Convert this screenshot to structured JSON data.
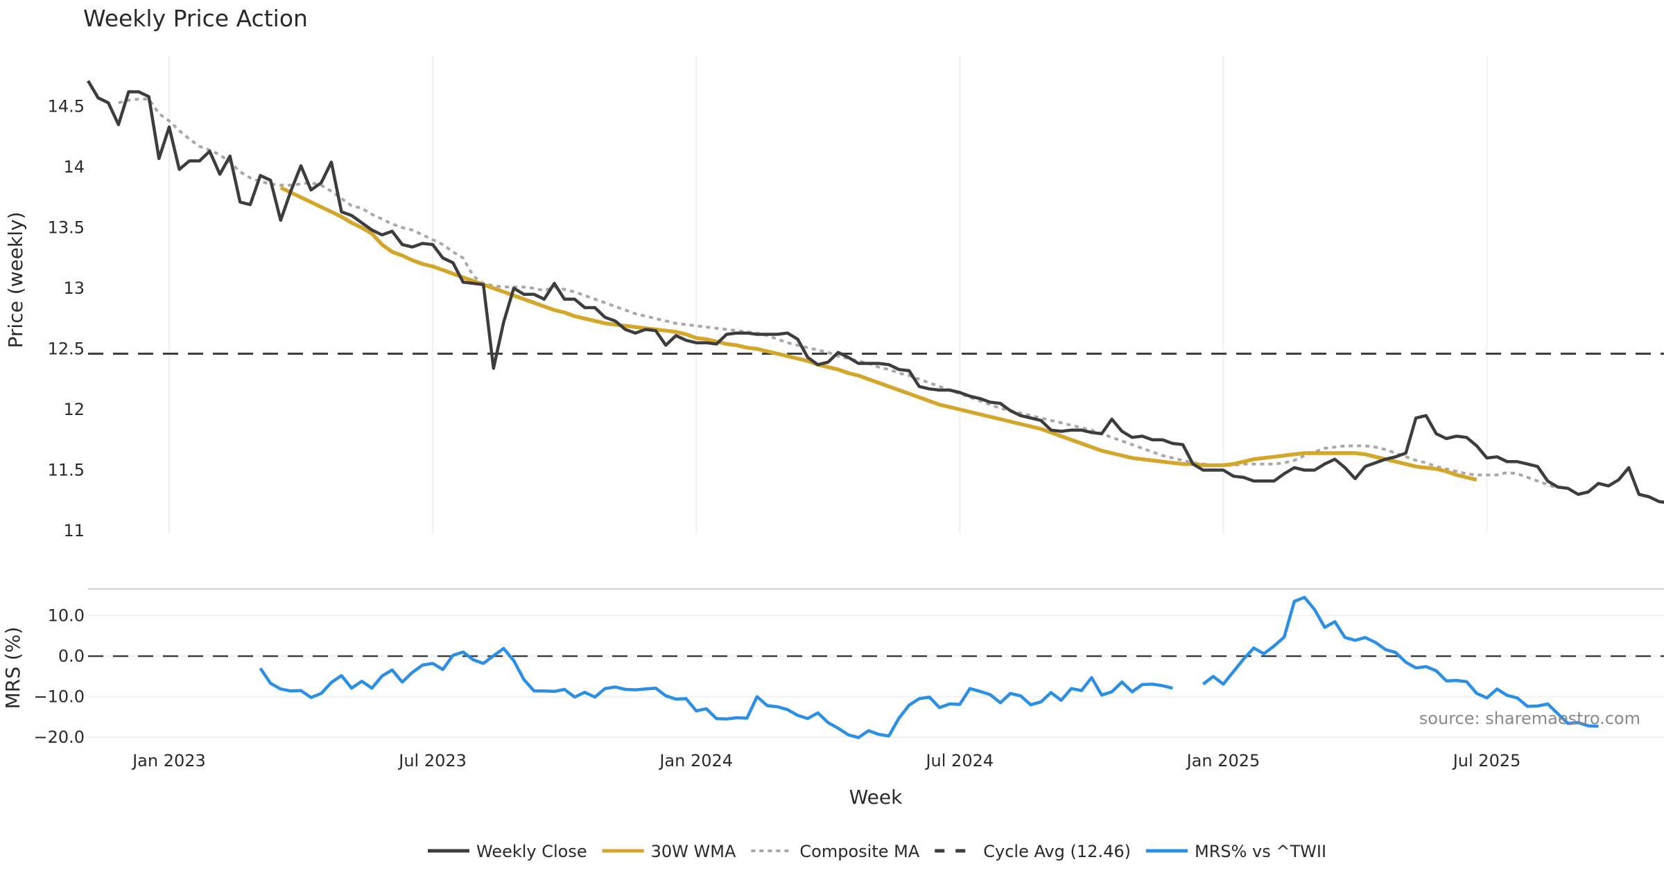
{
  "chart_data": [
    {
      "type": "line",
      "title": "Weekly Price Action",
      "xlabel": "",
      "ylabel": "Price (weekly)",
      "ylim": [
        10.9,
        14.85
      ],
      "yticks": [
        11,
        11.5,
        12,
        12.5,
        13,
        13.5,
        14,
        14.5
      ],
      "ytick_labels": [
        "11",
        "11.5",
        "12",
        "12.5",
        "13",
        "13.5",
        "14",
        "14.5"
      ],
      "grid": true,
      "x_start_week": "2022-11-07",
      "x_step_weeks": 1,
      "series": [
        {
          "name": "Weekly Close",
          "color": "#3d3d3d",
          "style": "solid",
          "start_index": 0,
          "values": [
            14.71,
            14.57,
            14.53,
            14.35,
            14.62,
            14.62,
            14.58,
            14.07,
            14.33,
            13.98,
            14.05,
            14.05,
            14.13,
            13.94,
            14.09,
            13.71,
            13.69,
            13.93,
            13.89,
            13.56,
            13.8,
            14.01,
            13.81,
            13.87,
            14.04,
            13.63,
            13.6,
            13.54,
            13.48,
            13.44,
            13.47,
            13.36,
            13.34,
            13.37,
            13.36,
            13.25,
            13.21,
            13.05,
            13.04,
            13.03,
            12.34,
            12.72,
            13.0,
            12.95,
            12.95,
            12.91,
            13.04,
            12.91,
            12.91,
            12.84,
            12.84,
            12.76,
            12.73,
            12.66,
            12.63,
            12.66,
            12.65,
            12.53,
            12.61,
            12.57,
            12.55,
            12.55,
            12.54,
            12.62,
            12.63,
            12.63,
            12.62,
            12.62,
            12.62,
            12.63,
            12.58,
            12.43,
            12.37,
            12.39,
            12.47,
            12.43,
            12.38,
            12.38,
            12.38,
            12.37,
            12.33,
            12.32,
            12.19,
            12.17,
            12.16,
            12.16,
            12.14,
            12.11,
            12.09,
            12.06,
            12.05,
            11.99,
            11.95,
            11.93,
            11.91,
            11.83,
            11.82,
            11.83,
            11.83,
            11.81,
            11.8,
            11.92,
            11.82,
            11.77,
            11.78,
            11.75,
            11.75,
            11.72,
            11.71,
            11.55,
            11.5,
            11.5,
            11.5,
            11.45,
            11.44,
            11.41,
            11.41,
            11.41,
            11.47,
            11.52,
            11.5,
            11.5,
            11.55,
            11.59,
            11.52,
            11.43,
            11.53,
            11.56,
            11.59,
            11.61,
            11.64,
            11.93,
            11.95,
            11.8,
            11.76,
            11.78,
            11.77,
            11.7,
            11.6,
            11.61,
            11.57,
            11.57,
            11.55,
            11.53,
            11.41,
            11.36,
            11.35,
            11.3,
            11.32,
            11.39,
            11.37,
            11.42,
            11.52,
            11.3,
            11.28,
            11.24,
            11.23,
            11.18
          ]
        },
        {
          "name": "30W WMA",
          "color": "#d4a62a",
          "style": "solid",
          "start_index": 19,
          "values": [
            13.83,
            13.79,
            13.75,
            13.71,
            13.67,
            13.63,
            13.59,
            13.54,
            13.5,
            13.45,
            13.36,
            13.3,
            13.27,
            13.23,
            13.2,
            13.18,
            13.15,
            13.12,
            13.09,
            13.06,
            13.03,
            13.0,
            12.97,
            12.94,
            12.91,
            12.88,
            12.85,
            12.82,
            12.8,
            12.77,
            12.75,
            12.73,
            12.71,
            12.7,
            12.69,
            12.68,
            12.67,
            12.66,
            12.65,
            12.64,
            12.62,
            12.59,
            12.58,
            12.56,
            12.54,
            12.53,
            12.51,
            12.5,
            12.48,
            12.46,
            12.44,
            12.42,
            12.4,
            12.37,
            12.35,
            12.33,
            12.3,
            12.28,
            12.25,
            12.22,
            12.19,
            12.16,
            12.13,
            12.1,
            12.07,
            12.04,
            12.02,
            12.0,
            11.98,
            11.96,
            11.94,
            11.92,
            11.9,
            11.88,
            11.86,
            11.84,
            11.81,
            11.78,
            11.75,
            11.72,
            11.69,
            11.66,
            11.64,
            11.62,
            11.6,
            11.59,
            11.58,
            11.57,
            11.56,
            11.55,
            11.55,
            11.54,
            11.54,
            11.54,
            11.55,
            11.57,
            11.59,
            11.6,
            11.61,
            11.62,
            11.63,
            11.64,
            11.64,
            11.64,
            11.64,
            11.64,
            11.64,
            11.63,
            11.61,
            11.59,
            11.57,
            11.55,
            11.53,
            11.52,
            11.51,
            11.49,
            11.46,
            11.44,
            11.42
          ]
        },
        {
          "name": "Composite MA",
          "color": "#a8a8a8",
          "style": "dotted",
          "start_index": 3,
          "values": [
            14.53,
            14.55,
            14.56,
            14.56,
            14.44,
            14.38,
            14.3,
            14.23,
            14.17,
            14.14,
            14.1,
            14.04,
            13.96,
            13.91,
            13.88,
            13.86,
            13.85,
            13.85,
            13.86,
            13.87,
            13.85,
            13.8,
            13.74,
            13.68,
            13.66,
            13.61,
            13.57,
            13.53,
            13.5,
            13.48,
            13.44,
            13.4,
            13.36,
            13.3,
            13.25,
            13.1,
            13.04,
            13.02,
            13.01,
            13.01,
            13.01,
            13.0,
            12.98,
            13.01,
            12.99,
            12.97,
            12.94,
            12.91,
            12.88,
            12.85,
            12.82,
            12.79,
            12.77,
            12.75,
            12.73,
            12.71,
            12.7,
            12.69,
            12.68,
            12.67,
            12.66,
            12.65,
            12.64,
            12.63,
            12.61,
            12.58,
            12.55,
            12.53,
            12.51,
            12.49,
            12.47,
            12.44,
            12.42,
            12.4,
            12.38,
            12.35,
            12.33,
            12.3,
            12.28,
            12.25,
            12.22,
            12.19,
            12.16,
            12.13,
            12.1,
            12.07,
            12.04,
            12.01,
            11.99,
            11.97,
            11.95,
            11.93,
            11.91,
            11.89,
            11.87,
            11.85,
            11.83,
            11.8,
            11.77,
            11.74,
            11.71,
            11.68,
            11.65,
            11.62,
            11.6,
            11.58,
            11.56,
            11.55,
            11.54,
            11.54,
            11.54,
            11.55,
            11.55,
            11.55,
            11.55,
            11.56,
            11.58,
            11.62,
            11.65,
            11.68,
            11.69,
            11.7,
            11.7,
            11.7,
            11.69,
            11.67,
            11.64,
            11.61,
            11.58,
            11.56,
            11.53,
            11.51,
            11.49,
            11.47,
            11.46,
            11.46,
            11.46,
            11.48,
            11.47,
            11.44,
            11.41,
            11.38,
            11.35
          ]
        }
      ],
      "reference_lines": [
        {
          "name": "Cycle Avg (12.46)",
          "value": 12.46,
          "color": "#3d3d3d",
          "style": "dashed"
        }
      ]
    },
    {
      "type": "line",
      "title": "",
      "xlabel": "Week",
      "ylabel": "MRS (%)",
      "ylim": [
        -21.5,
        13.5
      ],
      "yticks": [
        -20,
        -10,
        0,
        10
      ],
      "ytick_labels": [
        "−20.0",
        "−10.0",
        "0.0",
        "10.0"
      ],
      "xtick_labels": [
        "Jan 2023",
        "Jul 2023",
        "Jan 2024",
        "Jul 2024",
        "Jan 2025",
        "Jul 2025"
      ],
      "xtick_weeks_from_start": [
        8,
        34,
        60,
        86,
        112,
        138
      ],
      "grid": true,
      "series": [
        {
          "name": "MRS% vs ^TWII",
          "color": "#2b8fe5",
          "style": "solid",
          "segments": [
            {
              "start_index": 17,
              "values": [
                -3.0,
                -6.7,
                -8.1,
                -8.6,
                -8.5,
                -10.2,
                -9.2,
                -6.5,
                -4.8,
                -7.9,
                -6.2,
                -7.9,
                -4.9,
                -3.4,
                -6.4,
                -4.0,
                -2.2,
                -1.8,
                -3.3,
                0.2,
                1.0,
                -0.9,
                -1.8,
                0.1,
                1.9,
                -1.1,
                -5.8,
                -8.6,
                -8.6,
                -8.7,
                -8.2,
                -10.1,
                -8.9,
                -10.1,
                -8.0,
                -7.6,
                -8.2,
                -8.3,
                -8.1,
                -7.9,
                -9.8,
                -10.6,
                -10.5,
                -13.5,
                -13.0,
                -15.4,
                -15.5,
                -15.2,
                -15.3,
                -10.0,
                -12.2,
                -12.5,
                -13.2,
                -14.6,
                -15.4,
                -14.0,
                -16.4,
                -17.8,
                -19.4,
                -20.1,
                -18.4,
                -19.3,
                -19.7,
                -15.3,
                -12.1,
                -10.5,
                -10.1,
                -12.7,
                -11.8,
                -11.9,
                -8.0,
                -8.7,
                -9.5,
                -11.5,
                -9.2,
                -9.8,
                -12.0,
                -11.3,
                -9.0,
                -10.9,
                -8.0,
                -8.5,
                -5.3,
                -9.6,
                -8.8,
                -6.4,
                -8.8,
                -7.0,
                -6.9,
                -7.3,
                -7.9
              ]
            },
            {
              "start_index": 110,
              "values": [
                -6.9,
                -5.0,
                -6.9,
                -3.8,
                -0.7,
                2.0,
                0.6,
                2.5,
                4.7,
                13.5,
                14.5,
                11.5,
                7.1,
                8.5,
                4.6,
                3.9,
                4.6,
                3.4,
                1.6,
                0.9,
                -1.5,
                -2.9,
                -2.6,
                -3.6,
                -6.1,
                -6.0,
                -6.3,
                -9.2,
                -10.3,
                -8.1,
                -9.7,
                -10.3,
                -12.4,
                -12.3,
                -11.8,
                -14.2,
                -16.6,
                -16.4,
                -17.2,
                -17.3
              ]
            }
          ]
        }
      ],
      "reference_lines": [
        {
          "name": "zero",
          "value": 0,
          "color": "#3d3d3d",
          "style": "dashed"
        }
      ],
      "annotations": [
        {
          "text": "source: sharemaestro.com",
          "position": "bottom-right"
        }
      ]
    }
  ],
  "legend": {
    "placement": "bottom-center",
    "items": [
      {
        "label": "Weekly Close",
        "color": "#3d3d3d",
        "style": "solid"
      },
      {
        "label": "30W WMA",
        "color": "#d4a62a",
        "style": "solid"
      },
      {
        "label": "Composite MA",
        "color": "#a8a8a8",
        "style": "dotted"
      },
      {
        "label": "Cycle Avg (12.46)",
        "color": "#3d3d3d",
        "style": "dashed"
      },
      {
        "label": "MRS% vs ^TWII",
        "color": "#2b8fe5",
        "style": "solid"
      }
    ]
  }
}
